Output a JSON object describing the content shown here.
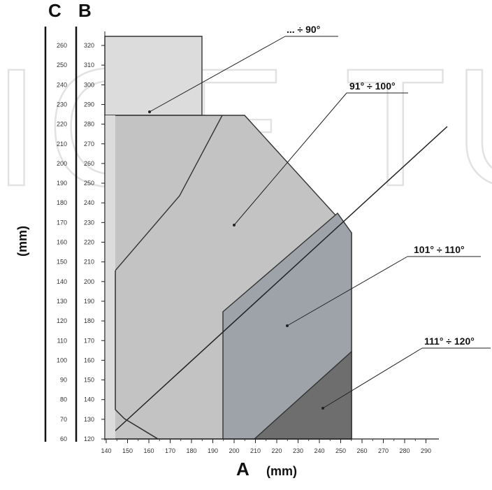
{
  "diagram": {
    "axis_c_label": "C",
    "axis_b_label": "B",
    "axis_a_label": "A",
    "unit_label": "(mm)",
    "vertical_unit_label": "(mm)",
    "watermark_text": "ICE TUR",
    "x_ticks": [
      "140",
      "150",
      "160",
      "170",
      "180",
      "190",
      "200",
      "210",
      "220",
      "230",
      "240",
      "250",
      "260",
      "270",
      "280",
      "290"
    ],
    "b_ticks": [
      "120",
      "130",
      "140",
      "150",
      "160",
      "170",
      "180",
      "190",
      "200",
      "210",
      "220",
      "230",
      "240",
      "250",
      "260",
      "270",
      "280",
      "290",
      "300",
      "310",
      "320"
    ],
    "c_ticks": [
      "60",
      "70",
      "80",
      "90",
      "100",
      "110",
      "120",
      "130",
      "140",
      "150",
      "160",
      "170",
      "180",
      "190",
      "200",
      "210",
      "220",
      "230",
      "240",
      "250",
      "260"
    ],
    "zones": [
      {
        "label": "... ÷ 90°",
        "color": "#dcdcdc"
      },
      {
        "label": "91° ÷ 100°",
        "color": "#c3c3c3"
      },
      {
        "label": "101° ÷ 110°",
        "color": "#9ea3aa"
      },
      {
        "label": "111° ÷ 120°",
        "color": "#6e6e6e"
      }
    ]
  }
}
